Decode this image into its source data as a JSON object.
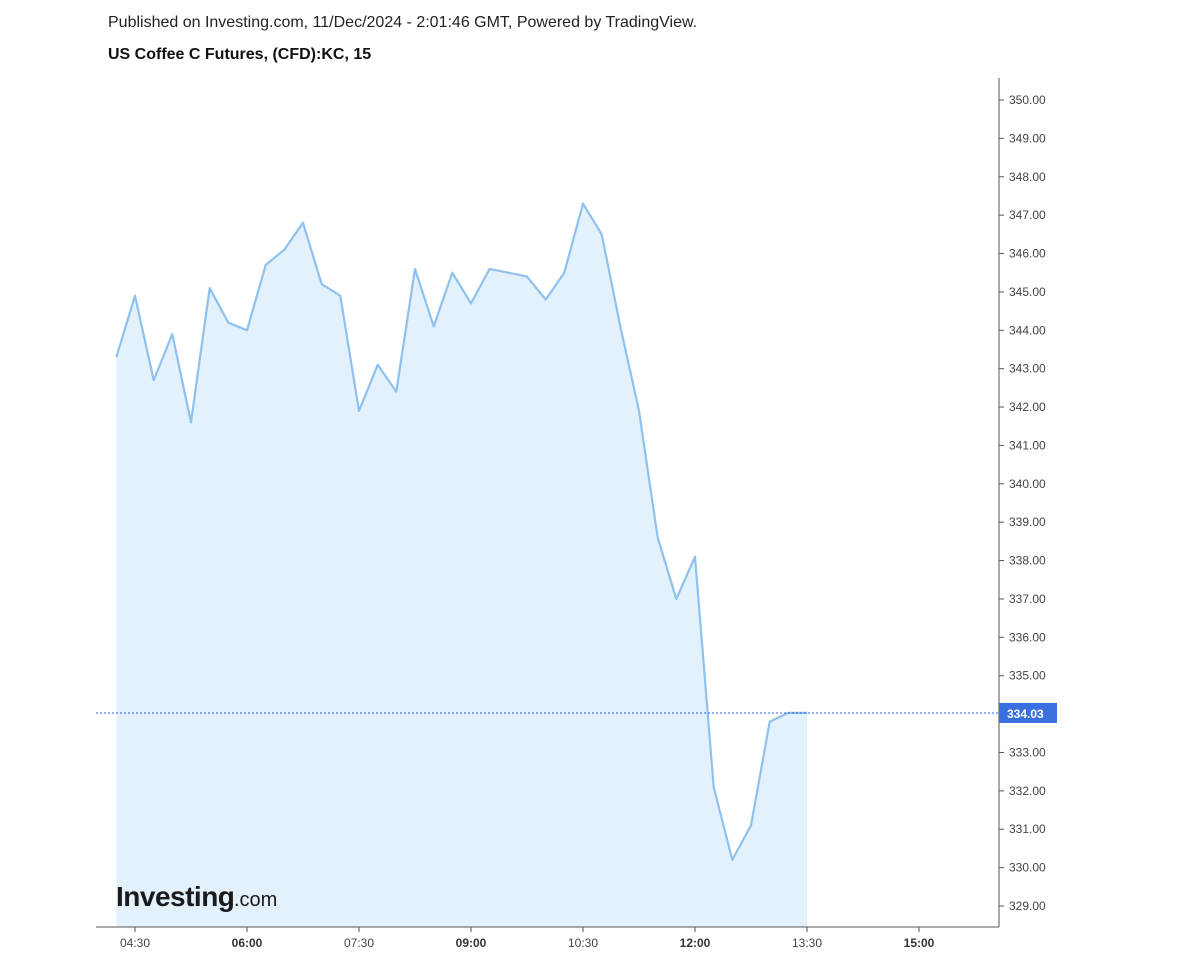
{
  "header": {
    "published": "Published on Investing.com, 11/Dec/2024 - 2:01:46 GMT, Powered by TradingView.",
    "title": "US Coffee C Futures, (CFD):KC, 15"
  },
  "logo": {
    "main": "Investing",
    "sub": ".com"
  },
  "chart_data": {
    "type": "area",
    "title": "US Coffee C Futures, (CFD):KC, 15",
    "xlabel": "",
    "ylabel": "",
    "ylim": [
      328.5,
      350.5
    ],
    "y_ticks": [
      "329.00",
      "330.00",
      "331.00",
      "332.00",
      "333.00",
      "334.00",
      "335.00",
      "336.00",
      "337.00",
      "338.00",
      "339.00",
      "340.00",
      "341.00",
      "342.00",
      "343.00",
      "344.00",
      "345.00",
      "346.00",
      "347.00",
      "348.00",
      "349.00",
      "350.00"
    ],
    "x_ticks": [
      {
        "label": "04:30",
        "major": false
      },
      {
        "label": "06:00",
        "major": true
      },
      {
        "label": "07:30",
        "major": false
      },
      {
        "label": "09:00",
        "major": true
      },
      {
        "label": "10:30",
        "major": false
      },
      {
        "label": "12:00",
        "major": true
      },
      {
        "label": "13:30",
        "major": false
      },
      {
        "label": "15:00",
        "major": true
      }
    ],
    "x": [
      "04:15",
      "04:30",
      "04:45",
      "05:00",
      "05:15",
      "05:30",
      "05:45",
      "06:00",
      "06:15",
      "06:30",
      "06:45",
      "07:00",
      "07:15",
      "07:30",
      "07:45",
      "08:00",
      "08:15",
      "08:30",
      "08:45",
      "09:00",
      "09:15",
      "09:30",
      "09:45",
      "10:00",
      "10:15",
      "10:30",
      "10:45",
      "11:00",
      "11:15",
      "11:30",
      "11:45",
      "12:00",
      "12:15",
      "12:30",
      "12:45",
      "13:00",
      "13:15",
      "13:30"
    ],
    "series": [
      {
        "values": [
          343.3,
          344.9,
          342.7,
          343.9,
          341.6,
          345.1,
          344.2,
          344.0,
          345.7,
          346.1,
          346.8,
          345.2,
          344.9,
          341.9,
          343.1,
          342.4,
          345.6,
          344.1,
          345.5,
          344.7,
          345.6,
          345.5,
          345.4,
          344.8,
          345.5,
          347.3,
          346.5,
          344.1,
          341.9,
          338.6,
          337.0,
          338.1,
          332.1,
          330.2,
          331.1,
          333.8,
          334.03,
          334.03
        ]
      }
    ],
    "last_price": 334.03,
    "last_price_label": "334.03",
    "colors": {
      "line": "#8fc1ee",
      "fill": "#e2f1fb",
      "price_line": "#2f5fd8",
      "price_badge": "#3a6fe0",
      "axis": "#555555"
    },
    "grid": false
  }
}
